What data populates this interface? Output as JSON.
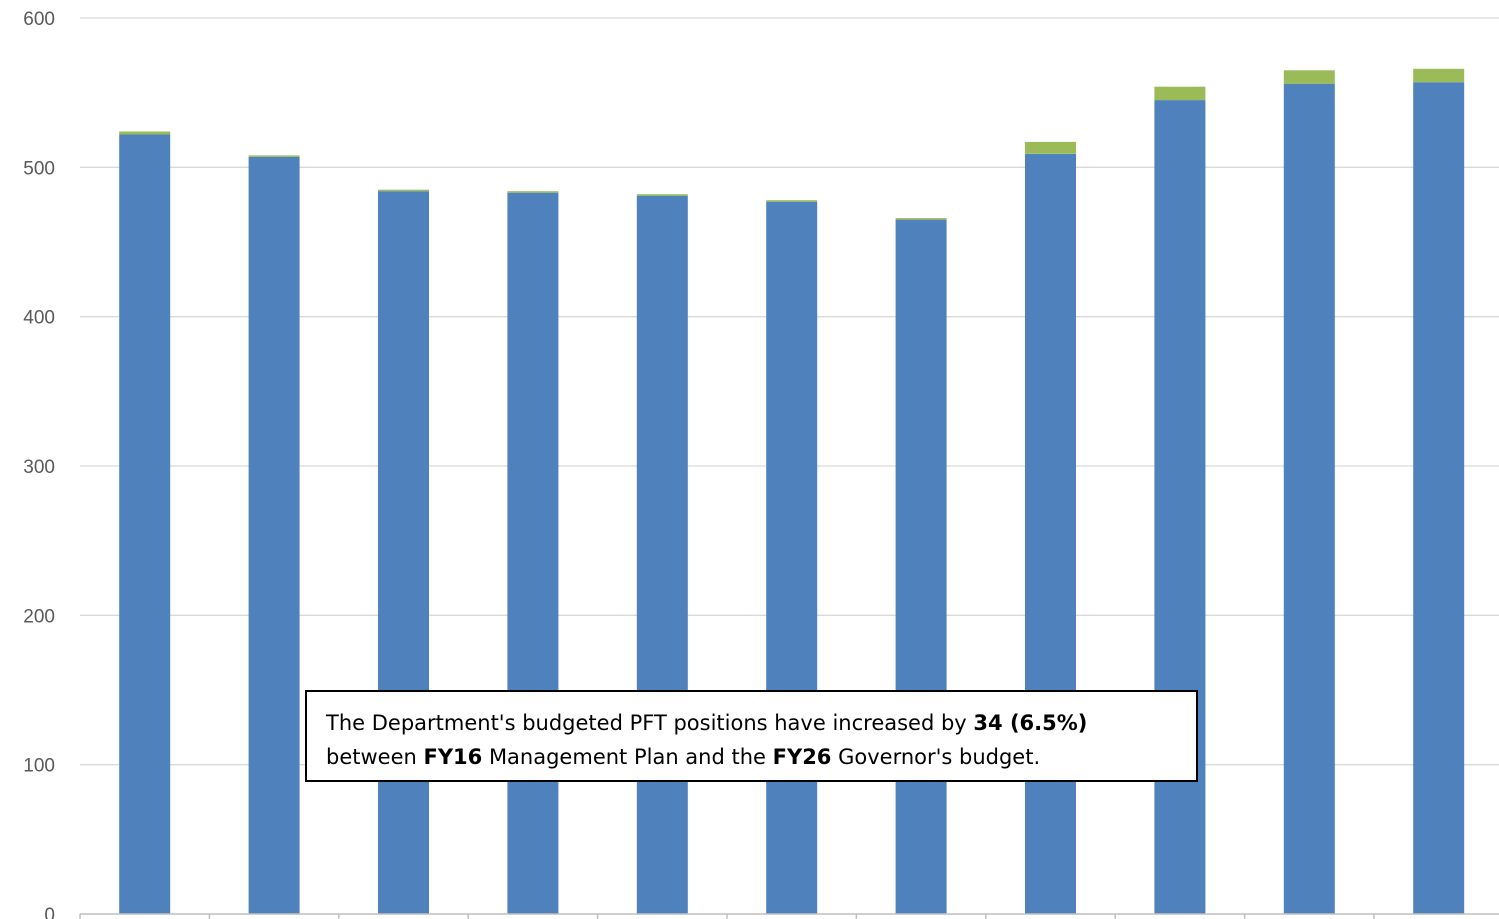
{
  "chart_data": {
    "type": "bar",
    "stacked": true,
    "title": "",
    "xlabel": "",
    "ylabel": "",
    "ylim": [
      0,
      600
    ],
    "yticks": [
      0,
      100,
      200,
      300,
      400,
      500,
      600
    ],
    "grid": true,
    "legend": "none",
    "categories": [
      "",
      "",
      "",
      "",
      "",
      "",
      "",
      "",
      "",
      "",
      ""
    ],
    "series": [
      {
        "color": "#4F81BD",
        "values": [
          522,
          507,
          484,
          483,
          481,
          477,
          465,
          509,
          545,
          556,
          557
        ]
      },
      {
        "color": "#9BBB59",
        "values": [
          2,
          1,
          1,
          1,
          1,
          1,
          1,
          8,
          9,
          9,
          9
        ]
      }
    ],
    "annotation": {
      "line1_before": "The Department's budgeted PFT positions have increased by ",
      "line1_bold": "34 (6.5%)",
      "line2_before": "between ",
      "line2_bold_a": "FY16",
      "line2_middle": " Management Plan and the ",
      "line2_bold_b": "FY26",
      "line2_after": " Governor's budget."
    }
  },
  "colors": {
    "gridline": "#D9D9D9",
    "axis": "#BFBFBF",
    "tick_text": "#595959"
  }
}
